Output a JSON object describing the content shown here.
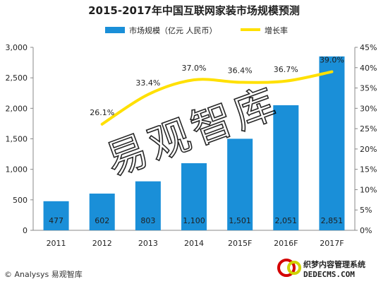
{
  "chart_data": {
    "type": "bar",
    "title": "2015-2017年中国互联网家装市场规模预测",
    "categories": [
      "2011",
      "2012",
      "2013",
      "2014",
      "2015F",
      "2016F",
      "2017F"
    ],
    "series": [
      {
        "name": "市场规模（亿元 人民币）",
        "type": "bar",
        "axis": "left",
        "values": [
          477,
          602,
          803,
          1100,
          1501,
          2051,
          2851
        ],
        "labels": [
          "477",
          "602",
          "803",
          "1,100",
          "1,501",
          "2,051",
          "2,851"
        ],
        "color": "#1a8fd8"
      },
      {
        "name": "增长率",
        "type": "line",
        "axis": "right",
        "values": [
          null,
          26.1,
          33.4,
          37.0,
          36.4,
          36.7,
          39.0
        ],
        "labels": [
          "",
          "26.1%",
          "33.4%",
          "37.0%",
          "36.4%",
          "36.7%",
          "39.0%"
        ],
        "color": "#ffe000"
      }
    ],
    "y_left": {
      "ylim": [
        0,
        3000
      ],
      "ticks": [
        0,
        500,
        1000,
        1500,
        2000,
        2500,
        3000
      ],
      "tick_labels": [
        "0",
        "500",
        "1,000",
        "1,500",
        "2,000",
        "2,500",
        "3,000"
      ]
    },
    "y_right": {
      "ylim": [
        0,
        45
      ],
      "ticks": [
        0,
        5,
        10,
        15,
        20,
        25,
        30,
        35,
        40,
        45
      ],
      "tick_labels": [
        "0%",
        "5%",
        "10%",
        "15%",
        "20%",
        "25%",
        "30%",
        "35%",
        "40%",
        "45%"
      ]
    },
    "grid": false,
    "legend_position": "top-center",
    "watermark": "易观智库"
  },
  "footer": "© Analysys 易观智库",
  "site_watermark": {
    "line1": "织梦内容管理系统",
    "line2": "DEDECMS.COM",
    "logo": "dede-logo"
  }
}
